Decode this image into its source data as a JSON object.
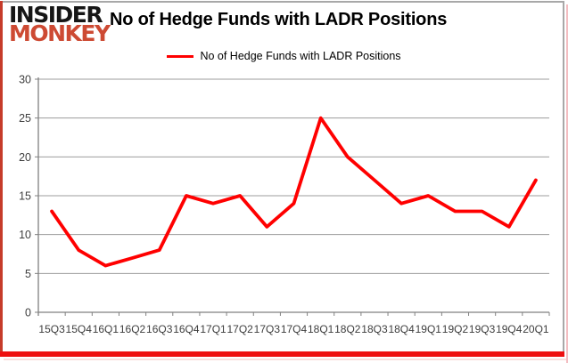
{
  "logo": {
    "line1": "INSIDER",
    "line2": "MONKEY"
  },
  "title": "No of Hedge Funds with LADR Positions",
  "legend": {
    "label": "No of Hedge Funds with LADR Positions"
  },
  "chart_data": {
    "type": "line",
    "title": "No of Hedge Funds with LADR Positions",
    "categories": [
      "15Q3",
      "15Q4",
      "16Q1",
      "16Q2",
      "16Q3",
      "16Q4",
      "17Q1",
      "17Q2",
      "17Q3",
      "17Q4",
      "18Q1",
      "18Q2",
      "18Q3",
      "18Q4",
      "19Q1",
      "19Q2",
      "19Q3",
      "19Q4",
      "20Q1"
    ],
    "values": [
      13,
      8,
      6,
      7,
      8,
      15,
      14,
      15,
      11,
      14,
      25,
      20,
      17,
      14,
      15,
      13,
      13,
      11,
      17
    ],
    "xlabel": "",
    "ylabel": "",
    "ylim": [
      0,
      30
    ],
    "yticks": [
      0,
      5,
      10,
      15,
      20,
      25,
      30
    ],
    "grid": true,
    "legend_position": "top-center",
    "series_name": "No of Hedge Funds with LADR Positions"
  },
  "colors": {
    "series_line": "#ff0000",
    "grid": "#9d9d9d",
    "axis": "#808080",
    "tick_label": "#3d3d3d",
    "logo_black": "#161616",
    "logo_red": "#cd4a33",
    "frame_red_left": "#c63b2a",
    "frame_red_bottom": "#ee0f0f",
    "frame_gray": "#a8a8a8",
    "frame_pink": "#f3bdc1"
  }
}
